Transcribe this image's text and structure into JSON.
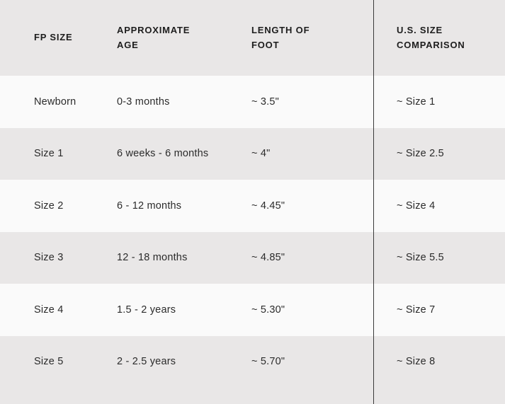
{
  "table": {
    "headers": [
      {
        "label": "FP SIZE"
      },
      {
        "label": "APPROXIMATE AGE"
      },
      {
        "label": "LENGTH OF FOOT"
      },
      {
        "label": "U.S. SIZE COMPARISON"
      }
    ],
    "rows": [
      {
        "fp_size": "Newborn",
        "age": "0-3 months",
        "foot_length": "~ 3.5\"",
        "us_size": "~ Size 1"
      },
      {
        "fp_size": "Size 1",
        "age": "6 weeks - 6 months",
        "foot_length": "~ 4\"",
        "us_size": "~ Size 2.5"
      },
      {
        "fp_size": "Size 2",
        "age": "6 - 12 months",
        "foot_length": "~ 4.45\"",
        "us_size": "~ Size 4"
      },
      {
        "fp_size": "Size 3",
        "age": "12 - 18 months",
        "foot_length": "~ 4.85\"",
        "us_size": "~ Size 5.5"
      },
      {
        "fp_size": "Size 4",
        "age": "1.5 - 2 years",
        "foot_length": "~ 5.30\"",
        "us_size": "~ Size 7"
      },
      {
        "fp_size": "Size 5",
        "age": "2 - 2.5 years",
        "foot_length": "~ 5.70\"",
        "us_size": "~ Size 8"
      }
    ],
    "colors": {
      "row_alt": "#e9e7e7",
      "row_light": "#fafafa",
      "divider": "#3a3a3a",
      "text": "#2b2b2b",
      "text_strong": "#1d1d1d"
    }
  }
}
